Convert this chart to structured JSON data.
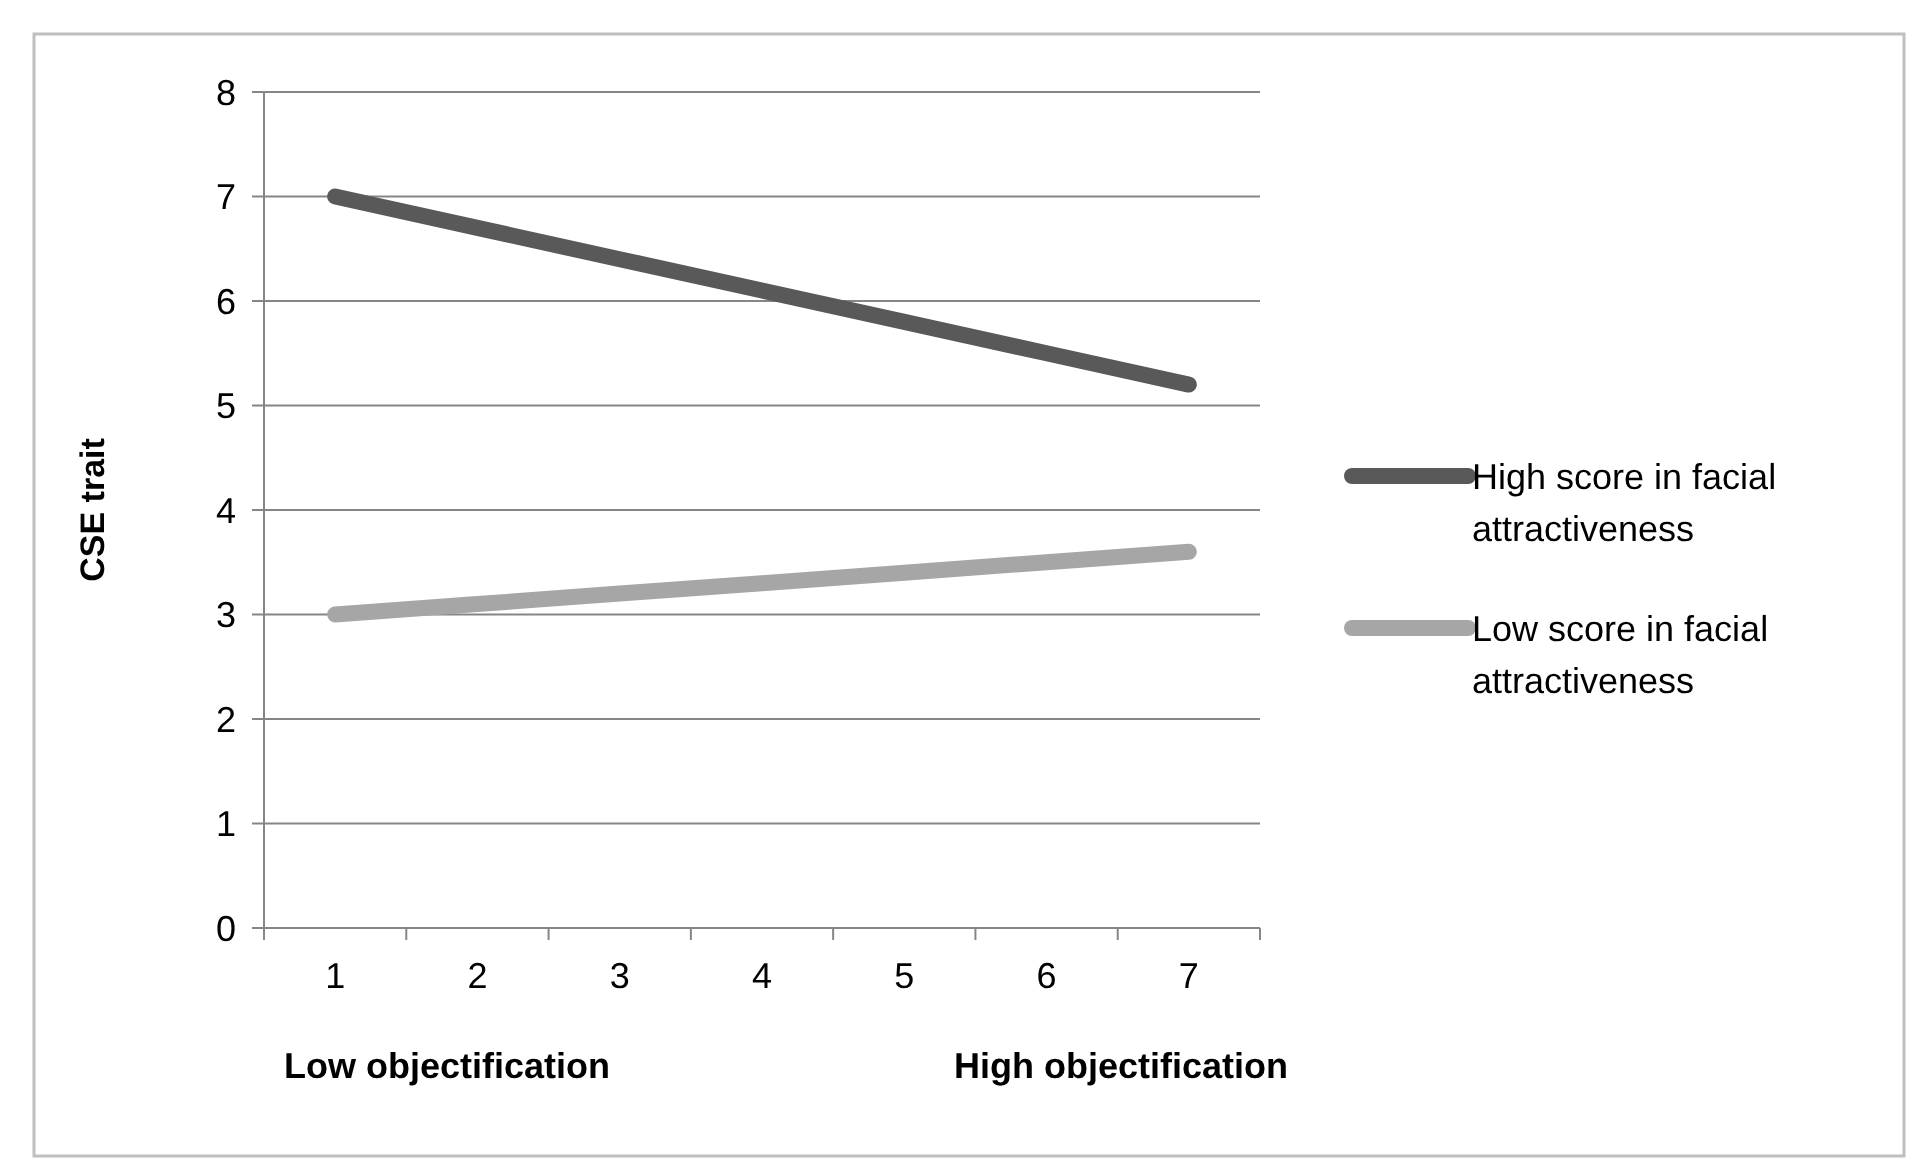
{
  "chart_data": {
    "type": "line",
    "ylabel": "CSE trait",
    "categories": [
      "1",
      "2",
      "3",
      "4",
      "5",
      "6",
      "7"
    ],
    "series": [
      {
        "name": "High score in facial attractiveness",
        "color": "#595959",
        "values": [
          7,
          6.7,
          6.4,
          6.1,
          5.8,
          5.5,
          5.2
        ]
      },
      {
        "name": "Low score in facial attractiveness",
        "color": "#a6a6a6",
        "values": [
          3,
          3.1,
          3.2,
          3.3,
          3.4,
          3.5,
          3.6
        ]
      }
    ],
    "ylim": [
      0,
      8
    ],
    "yticks": [
      0,
      1,
      2,
      3,
      4,
      5,
      6,
      7,
      8
    ],
    "grid": "y",
    "legend": "right",
    "marker": "none",
    "line_style": "solid",
    "annotations": [
      "Low objectification",
      "High objectification"
    ]
  }
}
